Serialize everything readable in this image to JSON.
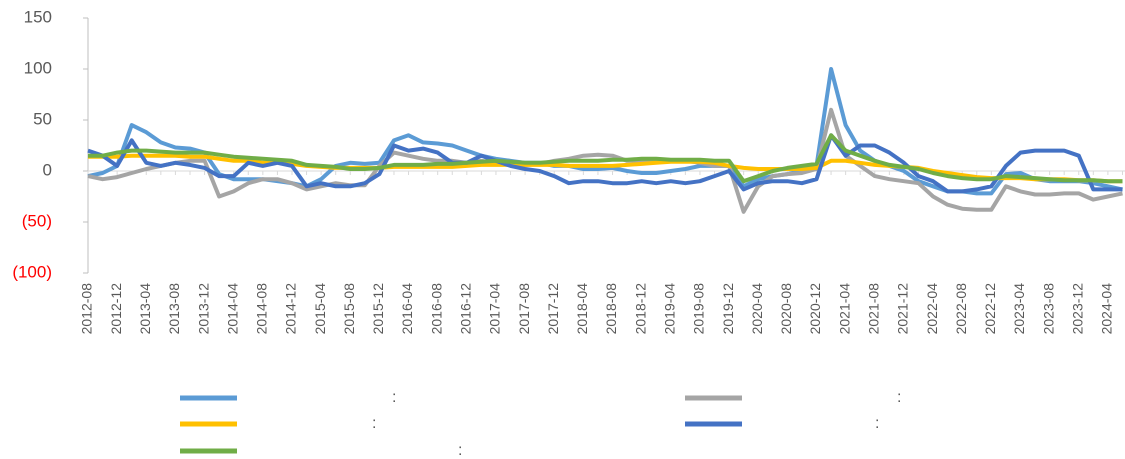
{
  "chart_data": {
    "type": "line",
    "categories": [
      "2012-08",
      null,
      "2012-12",
      null,
      "2013-04",
      null,
      "2013-08",
      null,
      "2013-12",
      null,
      "2014-04",
      null,
      "2014-08",
      null,
      "2014-12",
      null,
      "2015-04",
      null,
      "2015-08",
      null,
      "2015-12",
      null,
      "2016-04",
      null,
      "2016-08",
      null,
      "2016-12",
      null,
      "2017-04",
      null,
      "2017-08",
      null,
      "2017-12",
      null,
      "2018-04",
      null,
      "2018-08",
      null,
      "2018-12",
      null,
      "2019-04",
      null,
      "2019-08",
      null,
      "2019-12",
      null,
      "2020-04",
      null,
      "2020-08",
      null,
      "2020-12",
      null,
      "2021-04",
      null,
      "2021-08",
      null,
      "2021-12",
      null,
      "2022-04",
      null,
      "2022-08",
      null,
      "2022-12",
      null,
      "2023-04",
      null,
      "2023-08",
      null,
      "2023-12",
      null,
      "2024-04",
      null
    ],
    "series": [
      {
        "name": ":",
        "color": "#5b9bd5",
        "values": [
          -5,
          -2,
          5,
          45,
          38,
          28,
          23,
          22,
          18,
          -3,
          -8,
          -8,
          -8,
          -10,
          -12,
          -15,
          -8,
          5,
          8,
          7,
          8,
          30,
          35,
          28,
          27,
          25,
          20,
          15,
          12,
          10,
          8,
          8,
          5,
          5,
          2,
          2,
          3,
          0,
          -2,
          -2,
          0,
          2,
          5,
          5,
          5,
          -15,
          -8,
          -5,
          -3,
          0,
          5,
          100,
          45,
          20,
          10,
          5,
          0,
          -10,
          -15,
          -20,
          -20,
          -22,
          -22,
          -3,
          -2,
          -8,
          -10,
          -10,
          -10,
          -12,
          -15,
          -18
        ]
      },
      {
        "name": ":",
        "color": "#a5a5a5",
        "values": [
          -5,
          -8,
          -6,
          -2,
          2,
          5,
          8,
          10,
          10,
          -25,
          -20,
          -12,
          -8,
          -8,
          -12,
          -18,
          -15,
          -12,
          -14,
          -14,
          5,
          18,
          15,
          12,
          10,
          10,
          8,
          10,
          8,
          7,
          6,
          7,
          10,
          12,
          15,
          16,
          15,
          10,
          10,
          10,
          10,
          10,
          8,
          5,
          5,
          -40,
          -15,
          -5,
          -3,
          -2,
          2,
          60,
          15,
          5,
          -5,
          -8,
          -10,
          -12,
          -25,
          -33,
          -37,
          -38,
          -38,
          -15,
          -20,
          -23,
          -23,
          -22,
          -22,
          -28,
          -25,
          -22
        ]
      },
      {
        "name": ":",
        "color": "#ffc000",
        "values": [
          14,
          14,
          14,
          15,
          15,
          15,
          15,
          14,
          14,
          12,
          10,
          10,
          8,
          8,
          7,
          5,
          4,
          3,
          3,
          3,
          3,
          4,
          4,
          4,
          4,
          4,
          5,
          6,
          6,
          6,
          6,
          6,
          6,
          5,
          5,
          5,
          5,
          6,
          7,
          8,
          9,
          9,
          9,
          8,
          5,
          3,
          2,
          2,
          2,
          2,
          3,
          10,
          10,
          8,
          6,
          5,
          4,
          3,
          0,
          -2,
          -4,
          -6,
          -7,
          -7,
          -7,
          -8,
          -8,
          -8,
          -9,
          -9,
          -10,
          -10
        ]
      },
      {
        "name": ":",
        "color": "#4472c4",
        "values": [
          20,
          15,
          5,
          30,
          8,
          5,
          8,
          6,
          3,
          -5,
          -5,
          8,
          5,
          8,
          5,
          -15,
          -12,
          -15,
          -15,
          -12,
          -3,
          25,
          20,
          22,
          18,
          8,
          8,
          15,
          10,
          5,
          2,
          0,
          -5,
          -12,
          -10,
          -10,
          -12,
          -12,
          -10,
          -12,
          -10,
          -12,
          -10,
          -5,
          0,
          -18,
          -12,
          -10,
          -10,
          -12,
          -8,
          35,
          15,
          25,
          25,
          18,
          8,
          -5,
          -10,
          -20,
          -20,
          -18,
          -15,
          5,
          18,
          20,
          20,
          20,
          15,
          -18,
          -18,
          -18
        ]
      },
      {
        "name": ":",
        "color": "#70ad47",
        "values": [
          15,
          15,
          18,
          20,
          20,
          19,
          18,
          18,
          18,
          16,
          14,
          13,
          12,
          11,
          10,
          6,
          5,
          4,
          2,
          2,
          3,
          6,
          6,
          6,
          7,
          7,
          8,
          9,
          10,
          9,
          8,
          8,
          9,
          10,
          10,
          10,
          11,
          11,
          12,
          12,
          11,
          11,
          11,
          10,
          10,
          -10,
          -5,
          0,
          3,
          5,
          7,
          35,
          20,
          15,
          10,
          6,
          4,
          2,
          -2,
          -5,
          -7,
          -8,
          -8,
          -5,
          -6,
          -7,
          -8,
          -9,
          -9,
          -9,
          -10,
          -10
        ]
      }
    ],
    "ylim": [
      -100,
      150
    ],
    "yticks": [
      {
        "value": -100,
        "label": "(100)"
      },
      {
        "value": -50,
        "label": "(50)"
      },
      0,
      50,
      100,
      150
    ],
    "negative_tick_color": "#ff0000",
    "grid": false
  }
}
